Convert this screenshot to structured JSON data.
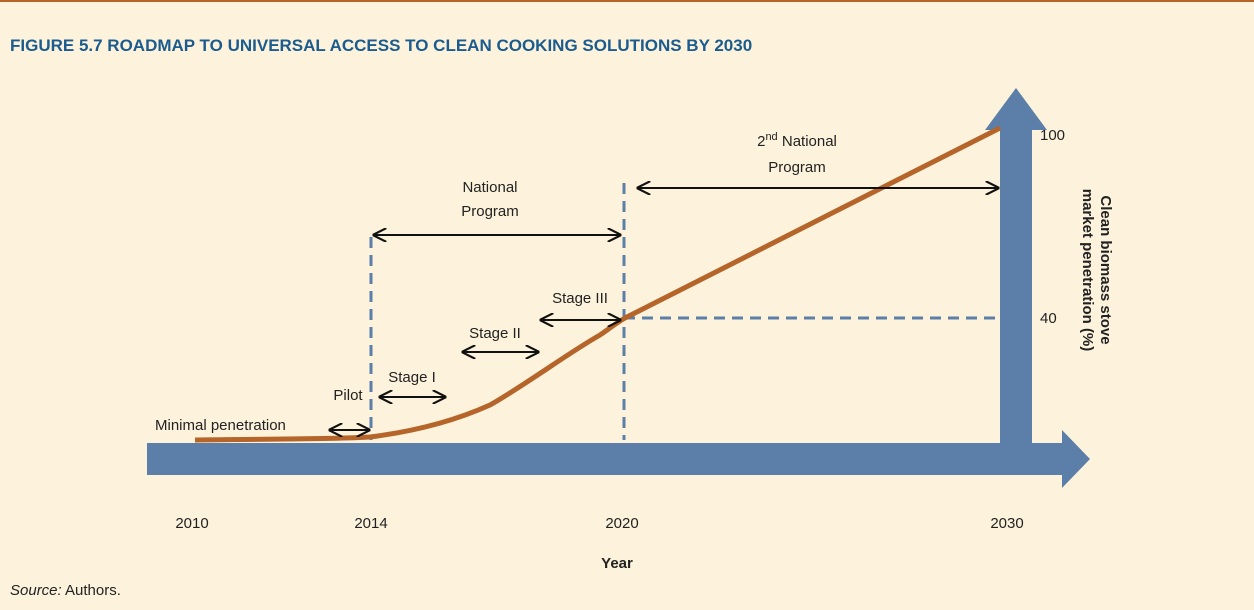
{
  "title": "FIGURE 5.7  ROADMAP TO UNIVERSAL ACCESS TO CLEAN COOKING SOLUTIONS BY 2030",
  "x_labels": [
    "2010",
    "2014",
    "2020",
    "2030"
  ],
  "x_axis_title": "Year",
  "y_labels": [
    "100",
    "40"
  ],
  "y_axis_title": [
    "Clean biomass stove",
    "market penetration (%)"
  ],
  "phases": {
    "minimal": "Minimal penetration",
    "pilot": "Pilot",
    "stage1": "Stage I",
    "stage2": "Stage II",
    "stage3": "Stage III",
    "national": [
      "National",
      "Program"
    ],
    "second": {
      "ordinal": "2",
      "suffix": "nd",
      "line1": " National",
      "line2": "Program"
    }
  },
  "source": {
    "label": "Source:",
    "text": " Authors."
  }
}
